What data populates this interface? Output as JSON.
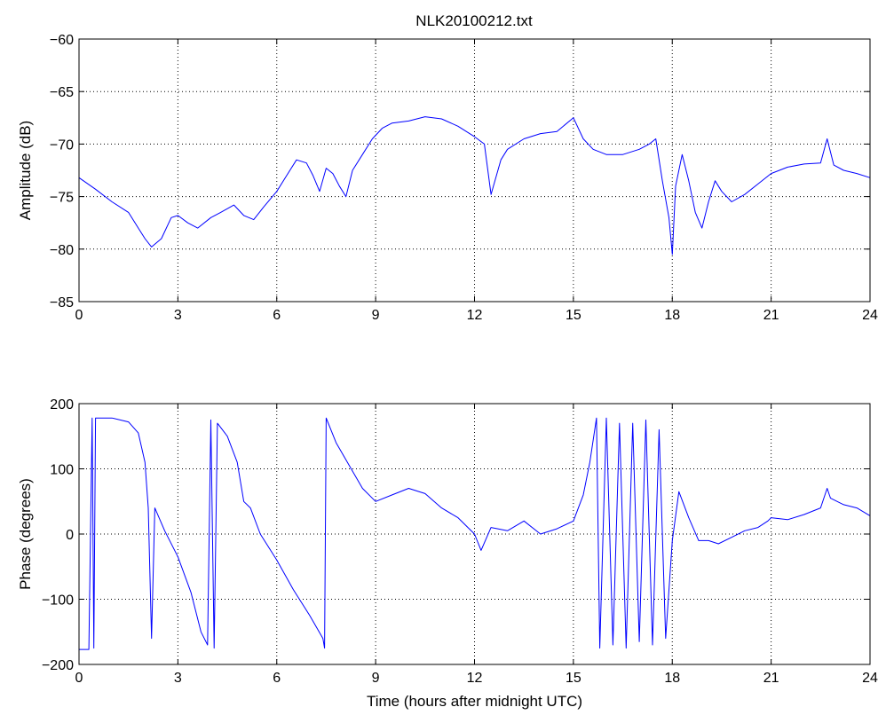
{
  "figure": {
    "title": "NLK20100212.txt"
  },
  "chart_data": [
    {
      "type": "line",
      "title": "NLK20100212.txt",
      "xlabel": "",
      "ylabel": "Amplitude (dB)",
      "xlim": [
        0,
        24
      ],
      "ylim": [
        -85,
        -60
      ],
      "xticks": [
        0,
        3,
        6,
        9,
        12,
        15,
        18,
        21,
        24
      ],
      "xtick_labels": [
        "0",
        "3",
        "6",
        "9",
        "12",
        "15",
        "18",
        "21",
        "24"
      ],
      "yticks": [
        -85,
        -80,
        -75,
        -70,
        -65,
        -60
      ],
      "ytick_labels": [
        "−85",
        "−80",
        "−75",
        "−70",
        "−65",
        "−60"
      ],
      "grid": true,
      "line_color": "#0000ff",
      "series": [
        {
          "x": [
            0,
            0.5,
            1.0,
            1.5,
            1.8,
            2.0,
            2.2,
            2.5,
            2.8,
            3.0,
            3.3,
            3.6,
            4.0,
            4.3,
            4.7,
            5.0,
            5.3,
            5.6,
            6.0,
            6.3,
            6.6,
            6.9,
            7.1,
            7.3,
            7.5,
            7.7,
            7.9,
            8.1,
            8.3,
            8.6,
            8.9,
            9.2,
            9.5,
            10.0,
            10.5,
            11.0,
            11.5,
            12.0,
            12.3,
            12.5,
            12.8,
            13.0,
            13.5,
            14.0,
            14.5,
            15.0,
            15.3,
            15.6,
            16.0,
            16.5,
            17.0,
            17.3,
            17.5,
            17.7,
            17.9,
            18.0,
            18.1,
            18.3,
            18.5,
            18.7,
            18.9,
            19.1,
            19.3,
            19.5,
            19.8,
            20.2,
            20.6,
            21.0,
            21.5,
            22.0,
            22.5,
            22.7,
            22.9,
            23.2,
            23.6,
            24.0
          ],
          "y": [
            -73.2,
            -74.3,
            -75.5,
            -76.5,
            -78.0,
            -79.0,
            -79.8,
            -79.0,
            -77.0,
            -76.8,
            -77.5,
            -78.0,
            -77.0,
            -76.5,
            -75.8,
            -76.8,
            -77.2,
            -76.0,
            -74.5,
            -73.0,
            -71.5,
            -71.8,
            -73.0,
            -74.5,
            -72.3,
            -72.8,
            -74.0,
            -75.0,
            -72.5,
            -71.0,
            -69.5,
            -68.5,
            -68.0,
            -67.8,
            -67.4,
            -67.6,
            -68.3,
            -69.3,
            -70.0,
            -74.8,
            -71.5,
            -70.5,
            -69.5,
            -69.0,
            -68.8,
            -67.5,
            -69.5,
            -70.5,
            -71.0,
            -71.0,
            -70.5,
            -70.0,
            -69.5,
            -73.5,
            -77.0,
            -80.5,
            -74.0,
            -71.0,
            -73.5,
            -76.5,
            -78.0,
            -75.5,
            -73.5,
            -74.5,
            -75.5,
            -74.8,
            -73.8,
            -72.8,
            -72.2,
            -71.9,
            -71.8,
            -69.5,
            -72.0,
            -72.5,
            -72.8,
            -73.2
          ]
        }
      ]
    },
    {
      "type": "line",
      "title": "",
      "xlabel": "Time (hours after midnight UTC)",
      "ylabel": "Phase (degrees)",
      "xlim": [
        0,
        24
      ],
      "ylim": [
        -200,
        200
      ],
      "xticks": [
        0,
        3,
        6,
        9,
        12,
        15,
        18,
        21,
        24
      ],
      "xtick_labels": [
        "0",
        "3",
        "6",
        "9",
        "12",
        "15",
        "18",
        "21",
        "24"
      ],
      "yticks": [
        -200,
        -100,
        0,
        100,
        200
      ],
      "ytick_labels": [
        "−200",
        "−100",
        "0",
        "100",
        "200"
      ],
      "grid": true,
      "line_color": "#0000ff",
      "series": [
        {
          "x": [
            0,
            0.3,
            0.4,
            0.45,
            0.5,
            1.0,
            1.5,
            1.8,
            2.0,
            2.1,
            2.2,
            2.3,
            2.6,
            3.0,
            3.4,
            3.7,
            3.9,
            4.0,
            4.1,
            4.2,
            4.5,
            4.8,
            5.0,
            5.2,
            5.5,
            6.0,
            6.5,
            7.0,
            7.4,
            7.45,
            7.5,
            7.8,
            8.2,
            8.6,
            9.0,
            9.5,
            10.0,
            10.5,
            11.0,
            11.5,
            12.0,
            12.2,
            12.5,
            13.0,
            13.5,
            14.0,
            14.5,
            15.0,
            15.3,
            15.5,
            15.7,
            15.8,
            16.0,
            16.2,
            16.4,
            16.6,
            16.8,
            17.0,
            17.2,
            17.4,
            17.6,
            17.8,
            18.0,
            18.2,
            18.5,
            18.8,
            19.1,
            19.4,
            19.8,
            20.2,
            20.6,
            20.9,
            21.0,
            21.5,
            22.0,
            22.5,
            22.7,
            22.8,
            23.2,
            23.6,
            24.0
          ],
          "y": [
            -177,
            -177,
            178,
            -175,
            178,
            178,
            172,
            155,
            110,
            40,
            -160,
            40,
            5,
            -35,
            -90,
            -150,
            -170,
            175,
            -175,
            170,
            150,
            110,
            50,
            40,
            0,
            -40,
            -85,
            -125,
            -160,
            -175,
            178,
            140,
            105,
            70,
            50,
            60,
            70,
            62,
            40,
            25,
            0,
            -25,
            10,
            5,
            20,
            0,
            8,
            20,
            60,
            110,
            178,
            -175,
            178,
            -170,
            170,
            -175,
            170,
            -165,
            175,
            -170,
            160,
            -160,
            -10,
            65,
            25,
            -10,
            -10,
            -15,
            -5,
            5,
            10,
            20,
            25,
            22,
            30,
            40,
            70,
            55,
            45,
            40,
            28
          ]
        }
      ]
    }
  ]
}
